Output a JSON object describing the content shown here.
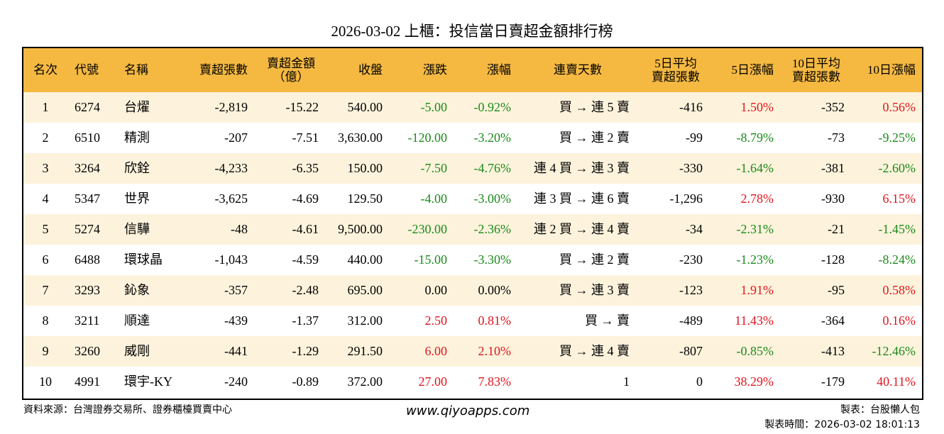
{
  "title": "2026-03-02 上櫃：投信當日賣超金額排行榜",
  "table": {
    "header": [
      "名次",
      "代號",
      "名稱",
      "賣超張數",
      "賣超金額\n（億）",
      "收盤",
      "漲跌",
      "漲幅",
      "連賣天數",
      "5日平均\n賣超張數",
      "5日漲幅",
      "10日平均\n賣超張數",
      "10日漲幅"
    ],
    "rows": [
      [
        "1",
        "6274",
        "台燿",
        "-2,819",
        "-15.22",
        "540.00",
        "-5.00",
        "-0.92%",
        "買 → 連 5 賣",
        "-416",
        "1.50%",
        "-352",
        "0.56%"
      ],
      [
        "2",
        "6510",
        "精測",
        "-207",
        "-7.51",
        "3,630.00",
        "-120.00",
        "-3.20%",
        "買 → 連 2 賣",
        "-99",
        "-8.79%",
        "-73",
        "-9.25%"
      ],
      [
        "3",
        "3264",
        "欣銓",
        "-4,233",
        "-6.35",
        "150.00",
        "-7.50",
        "-4.76%",
        "連 4 買 → 連 3 賣",
        "-330",
        "-1.64%",
        "-381",
        "-2.60%"
      ],
      [
        "4",
        "5347",
        "世界",
        "-3,625",
        "-4.69",
        "129.50",
        "-4.00",
        "-3.00%",
        "連 3 買 → 連 6 賣",
        "-1,296",
        "2.78%",
        "-930",
        "6.15%"
      ],
      [
        "5",
        "5274",
        "信驊",
        "-48",
        "-4.61",
        "9,500.00",
        "-230.00",
        "-2.36%",
        "連 2 買 → 連 4 賣",
        "-34",
        "-2.31%",
        "-21",
        "-1.45%"
      ],
      [
        "6",
        "6488",
        "環球晶",
        "-1,043",
        "-4.59",
        "440.00",
        "-15.00",
        "-3.30%",
        "買 → 連 2 賣",
        "-230",
        "-1.23%",
        "-128",
        "-8.24%"
      ],
      [
        "7",
        "3293",
        "鈊象",
        "-357",
        "-2.48",
        "695.00",
        "0.00",
        "0.00%",
        "買 → 連 3 賣",
        "-123",
        "1.91%",
        "-95",
        "0.58%"
      ],
      [
        "8",
        "3211",
        "順達",
        "-439",
        "-1.37",
        "312.00",
        "2.50",
        "0.81%",
        "買 → 賣",
        "-489",
        "11.43%",
        "-364",
        "0.16%"
      ],
      [
        "9",
        "3260",
        "威剛",
        "-441",
        "-1.29",
        "291.50",
        "6.00",
        "2.10%",
        "買 → 連 4 賣",
        "-807",
        "-0.85%",
        "-413",
        "-12.46%"
      ],
      [
        "10",
        "4991",
        "環宇-KY",
        "-240",
        "-0.89",
        "372.00",
        "27.00",
        "7.83%",
        "1",
        "0",
        "38.29%",
        "-179",
        "40.11%"
      ]
    ]
  },
  "footer": {
    "source": "資料來源：台灣證券交易所、證券櫃檯買賣中心",
    "site": "www.qiyoapps.com",
    "maker": "製表：台股懶人包",
    "time": "製表時間：2026-03-02 18:01:13"
  }
}
